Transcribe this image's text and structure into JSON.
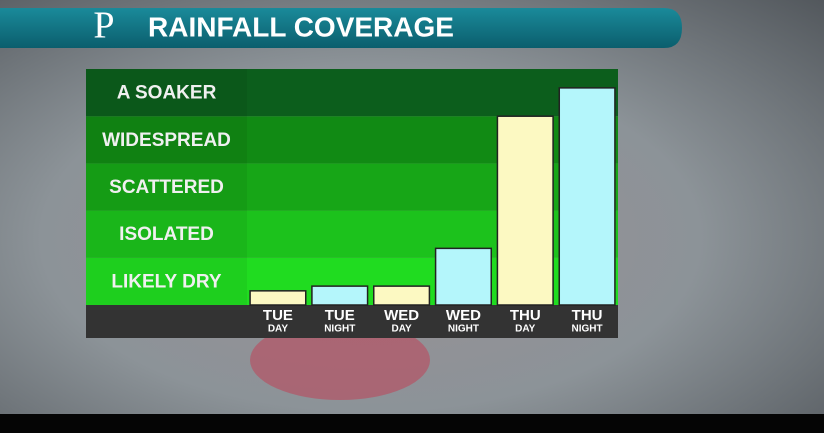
{
  "chart_data": {
    "type": "bar",
    "brand": "P",
    "title": "RAINFALL COVERAGE",
    "levels": [
      "LIKELY DRY",
      "ISOLATED",
      "SCATTERED",
      "WIDESPREAD",
      "A SOAKER"
    ],
    "level_colors": [
      "#20dc20",
      "#1cc21c",
      "#17a617",
      "#118a14",
      "#0c5e1c"
    ],
    "categories": [
      {
        "day": "TUE",
        "period": "DAY"
      },
      {
        "day": "TUE",
        "period": "NIGHT"
      },
      {
        "day": "WED",
        "period": "DAY"
      },
      {
        "day": "WED",
        "period": "NIGHT"
      },
      {
        "day": "THU",
        "period": "DAY"
      },
      {
        "day": "THU",
        "period": "NIGHT"
      }
    ],
    "values": [
      0.3,
      0.4,
      0.4,
      1.2,
      4.0,
      4.6
    ],
    "colors": [
      "#fcf9c2",
      "#b4f6fb",
      "#fcf9c2",
      "#b4f6fb",
      "#fcf9c2",
      "#b4f6fb"
    ],
    "ylim": [
      0,
      5
    ]
  }
}
